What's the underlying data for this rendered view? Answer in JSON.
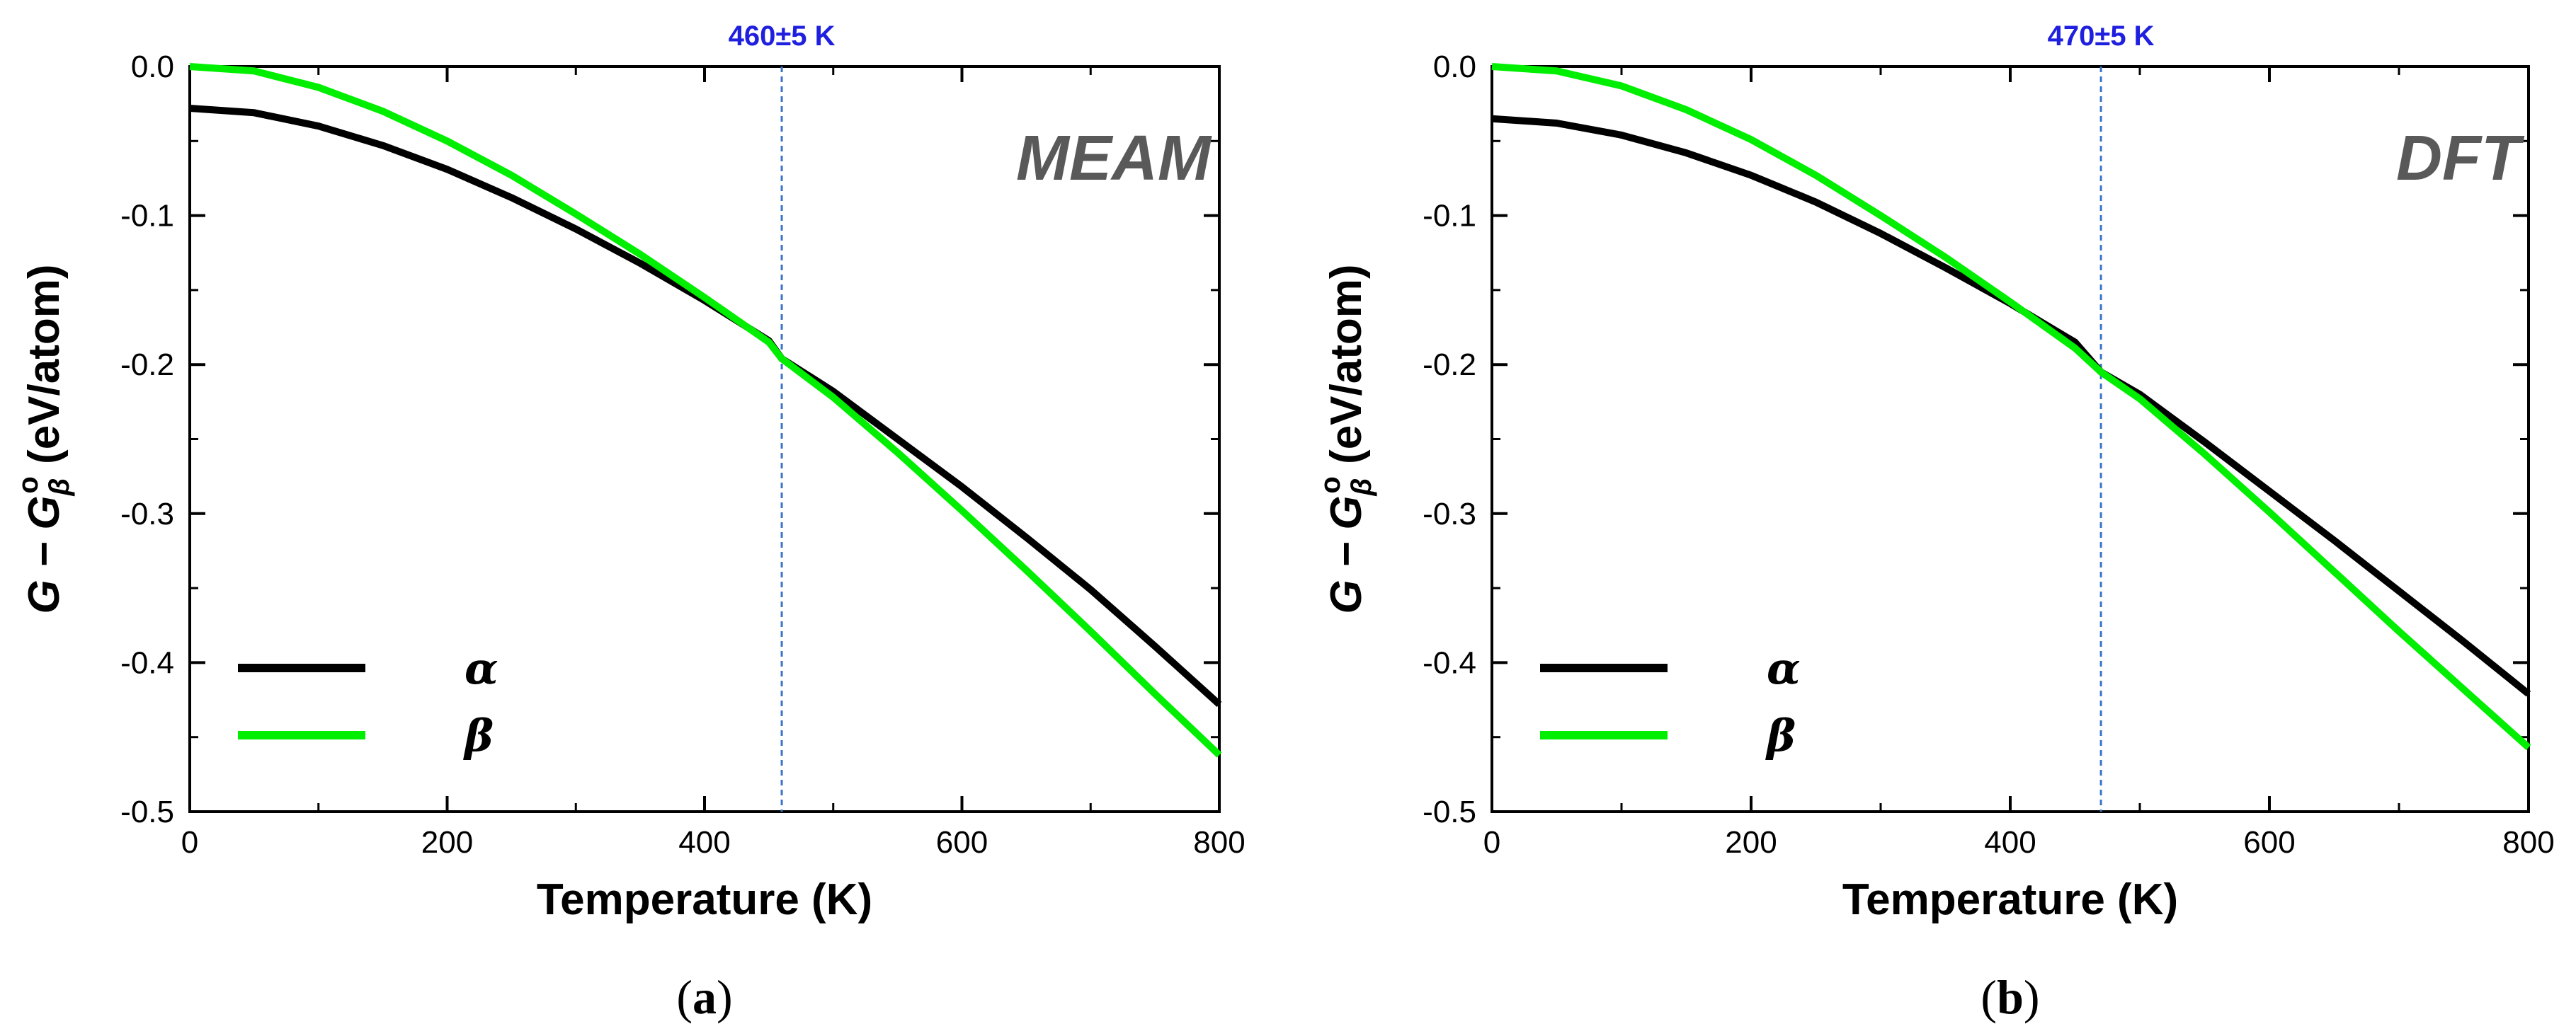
{
  "chart_data": [
    {
      "type": "line",
      "panel": "(a)",
      "panel_letter": "a",
      "method_label": "MEAM",
      "transition_label": "460±5 K",
      "transition_temperature": 460,
      "xlabel": "Temperature (K)",
      "ylabel_parts": [
        "G − G",
        "β",
        "o",
        " (eV/atom)"
      ],
      "xlim": [
        0,
        800
      ],
      "ylim": [
        -0.5,
        0.0
      ],
      "x_ticks": [
        0,
        200,
        400,
        600,
        800
      ],
      "x_tick_labels": [
        "0",
        "200",
        "400",
        "600",
        "800"
      ],
      "y_ticks": [
        0.0,
        -0.1,
        -0.2,
        -0.3,
        -0.4,
        -0.5
      ],
      "y_tick_labels": [
        "0.0",
        "-0.1",
        "-0.2",
        "-0.3",
        "-0.4",
        "-0.5"
      ],
      "legend_position": "bottom-left",
      "series": [
        {
          "name": "α",
          "color": "#000000",
          "x": [
            0,
            50,
            100,
            150,
            200,
            250,
            300,
            350,
            400,
            450,
            460,
            500,
            550,
            600,
            650,
            700,
            750,
            800
          ],
          "y": [
            -0.028,
            -0.031,
            -0.04,
            -0.053,
            -0.069,
            -0.088,
            -0.109,
            -0.132,
            -0.157,
            -0.184,
            -0.196,
            -0.218,
            -0.25,
            -0.282,
            -0.316,
            -0.351,
            -0.389,
            -0.428
          ]
        },
        {
          "name": "β",
          "color": "#00ee00",
          "x": [
            0,
            50,
            100,
            150,
            200,
            250,
            300,
            350,
            400,
            450,
            460,
            500,
            550,
            600,
            650,
            700,
            750,
            800
          ],
          "y": [
            0.0,
            -0.003,
            -0.014,
            -0.03,
            -0.05,
            -0.073,
            -0.099,
            -0.126,
            -0.155,
            -0.185,
            -0.196,
            -0.222,
            -0.259,
            -0.298,
            -0.338,
            -0.379,
            -0.421,
            -0.462
          ]
        }
      ]
    },
    {
      "type": "line",
      "panel": "(b)",
      "panel_letter": "b",
      "method_label": "DFT",
      "transition_label": "470±5 K",
      "transition_temperature": 470,
      "xlabel": "Temperature (K)",
      "ylabel_parts": [
        "G − G",
        "β",
        "o",
        " (eV/atom)"
      ],
      "xlim": [
        0,
        800
      ],
      "ylim": [
        -0.5,
        0.0
      ],
      "x_ticks": [
        0,
        200,
        400,
        600,
        800
      ],
      "x_tick_labels": [
        "0",
        "200",
        "400",
        "600",
        "800"
      ],
      "y_ticks": [
        0.0,
        -0.1,
        -0.2,
        -0.3,
        -0.4,
        -0.5
      ],
      "y_tick_labels": [
        "0.0",
        "-0.1",
        "-0.2",
        "-0.3",
        "-0.4",
        "-0.5"
      ],
      "legend_position": "bottom-left",
      "series": [
        {
          "name": "α",
          "color": "#000000",
          "x": [
            0,
            50,
            100,
            150,
            200,
            250,
            300,
            350,
            400,
            450,
            470,
            500,
            550,
            600,
            650,
            700,
            750,
            800
          ],
          "y": [
            -0.035,
            -0.038,
            -0.046,
            -0.058,
            -0.073,
            -0.091,
            -0.112,
            -0.135,
            -0.159,
            -0.185,
            -0.205,
            -0.22,
            -0.252,
            -0.285,
            -0.318,
            -0.352,
            -0.386,
            -0.421
          ]
        },
        {
          "name": "β",
          "color": "#00ee00",
          "x": [
            0,
            50,
            100,
            150,
            200,
            250,
            300,
            350,
            400,
            450,
            470,
            500,
            550,
            600,
            650,
            700,
            750,
            800
          ],
          "y": [
            0.0,
            -0.003,
            -0.013,
            -0.029,
            -0.049,
            -0.073,
            -0.1,
            -0.128,
            -0.158,
            -0.189,
            -0.205,
            -0.223,
            -0.26,
            -0.299,
            -0.339,
            -0.379,
            -0.418,
            -0.457
          ]
        }
      ]
    }
  ]
}
